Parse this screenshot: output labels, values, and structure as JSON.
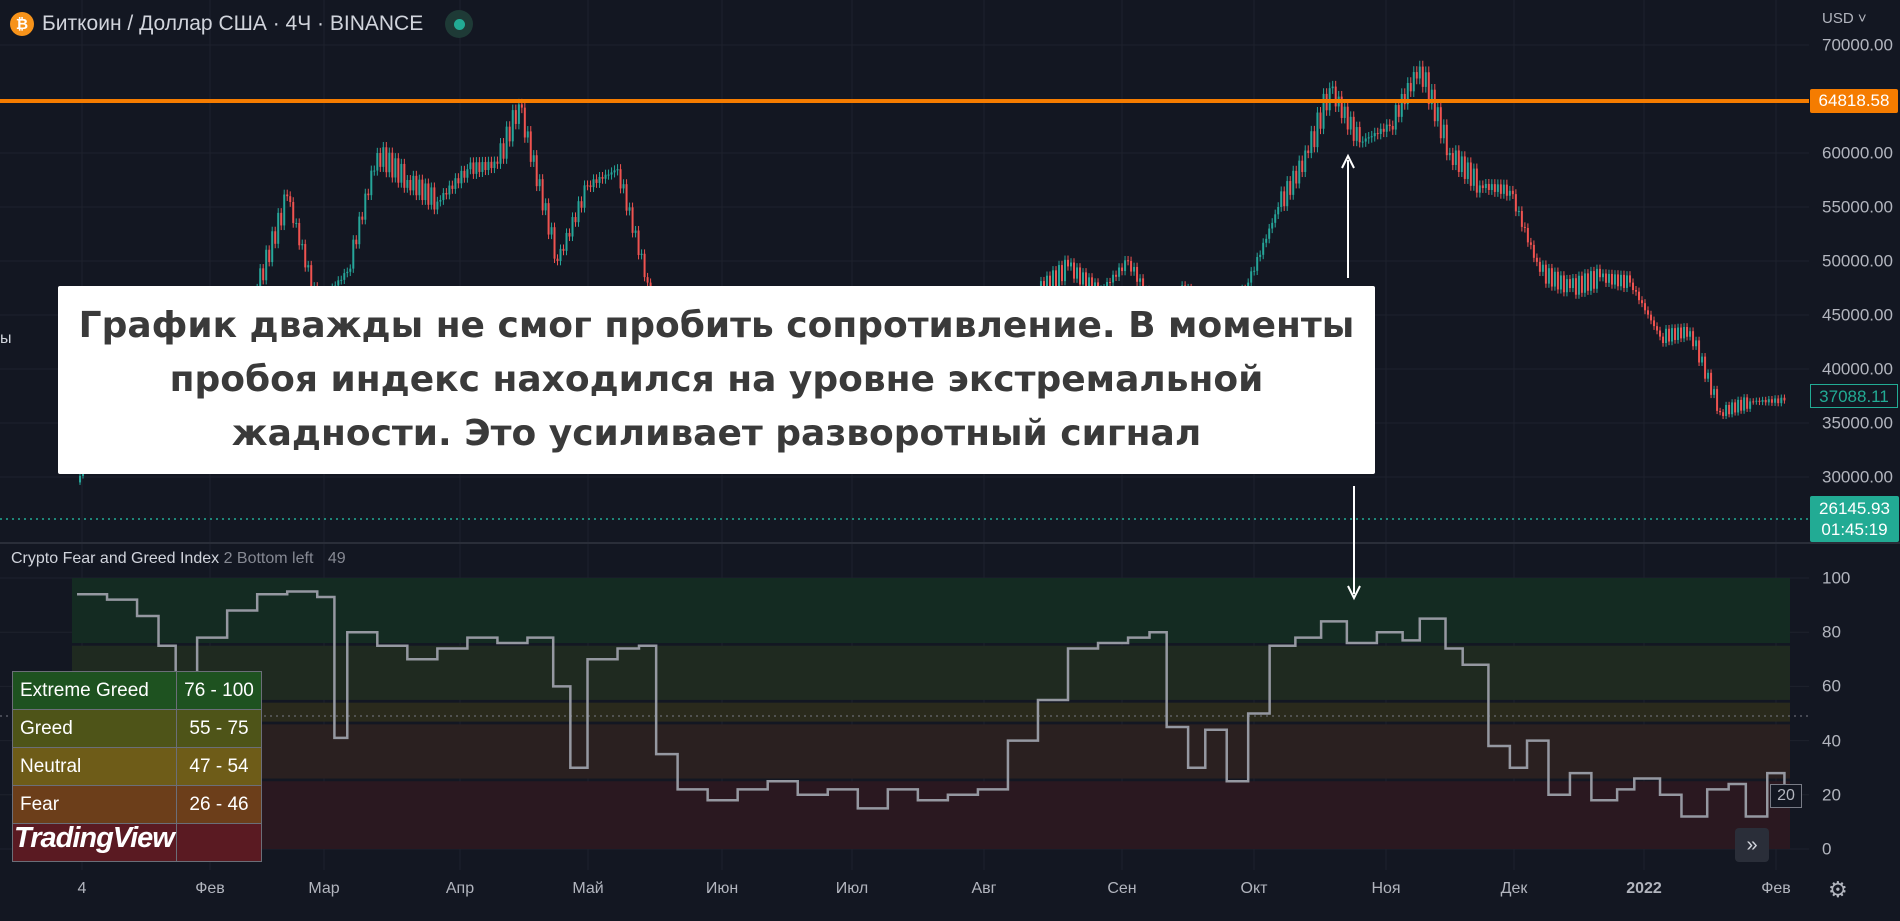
{
  "header": {
    "symbol_title": "Биткоин / Доллар США · 4Ч · BINANCE",
    "icon": "bitcoin-icon",
    "market_status": "open"
  },
  "price_axis": {
    "currency": "USD",
    "ticks": [
      "70000.00",
      "60000.00",
      "55000.00",
      "50000.00",
      "45000.00",
      "40000.00",
      "35000.00",
      "30000.00"
    ],
    "resistance_label": "64818.58",
    "last_label": "37088.11",
    "current_price": "26145.93",
    "countdown": "01:45:19"
  },
  "cutoff_text": "ы",
  "annotation": {
    "lines": [
      "График дважды не смог пробить сопротивление. В моменты",
      "пробоя индекс находился на уровне экстремальной",
      "жадности. Это усиливает разворотный сигнал"
    ]
  },
  "indicator": {
    "title": "Crypto Fear and Greed Index",
    "params": "2 Bottom left",
    "value_label": "49",
    "ticks": [
      "100",
      "80",
      "60",
      "40",
      "20",
      "0"
    ],
    "current": "20",
    "legend": [
      {
        "label": "Extreme Greed",
        "range": "76 - 100",
        "color": "#1e5220"
      },
      {
        "label": "Greed",
        "range": "55 - 75",
        "color": "#4e5418"
      },
      {
        "label": "Neutral",
        "range": "47 - 54",
        "color": "#6e5c18"
      },
      {
        "label": "Fear",
        "range": "26 - 46",
        "color": "#6c3e1a"
      },
      {
        "label": "",
        "range": "",
        "color": "#5a1a22"
      }
    ]
  },
  "time_axis": {
    "ticks": [
      "4",
      "Фев",
      "Мар",
      "Апр",
      "Май",
      "Июн",
      "Июл",
      "Авг",
      "Сен",
      "Окт",
      "Ноя",
      "Дек",
      "2022",
      "Фев"
    ]
  },
  "watermark": "TradingView",
  "colors": {
    "background": "#131722",
    "up": "#26a69a",
    "down": "#ef5350",
    "resistance": "#f57c00",
    "index_line": "#9598a1"
  },
  "chart_data": [
    {
      "type": "candlestick",
      "title": "Биткоин / Доллар США · 4Ч · BINANCE",
      "ylim": [
        25000,
        72000
      ],
      "resistance": 64818.58,
      "x": [
        "2021-01-01",
        "2021-01-08",
        "2021-01-15",
        "2021-01-22",
        "2021-01-29",
        "2021-02-05",
        "2021-02-12",
        "2021-02-19",
        "2021-02-26",
        "2021-03-05",
        "2021-03-12",
        "2021-03-19",
        "2021-03-26",
        "2021-04-02",
        "2021-04-09",
        "2021-04-14",
        "2021-04-23",
        "2021-04-30",
        "2021-05-07",
        "2021-05-14",
        "2021-05-21",
        "2021-05-28",
        "2021-06-04",
        "2021-06-11",
        "2021-06-18",
        "2021-06-25",
        "2021-07-02",
        "2021-07-09",
        "2021-07-16",
        "2021-07-23",
        "2021-07-30",
        "2021-08-06",
        "2021-08-13",
        "2021-08-20",
        "2021-08-27",
        "2021-09-03",
        "2021-09-10",
        "2021-09-17",
        "2021-09-24",
        "2021-10-01",
        "2021-10-08",
        "2021-10-15",
        "2021-10-20",
        "2021-10-27",
        "2021-11-03",
        "2021-11-10",
        "2021-11-17",
        "2021-11-24",
        "2021-12-01",
        "2021-12-08",
        "2021-12-15",
        "2021-12-22",
        "2021-12-29",
        "2022-01-05",
        "2022-01-12",
        "2022-01-19",
        "2022-01-26",
        "2022-02-03"
      ],
      "close": [
        29500,
        40000,
        36500,
        32000,
        34000,
        39000,
        47500,
        56000,
        46000,
        49000,
        60000,
        57500,
        55500,
        58500,
        59000,
        64500,
        50000,
        57000,
        58500,
        48000,
        37000,
        35500,
        36500,
        39000,
        35500,
        32000,
        33800,
        33800,
        31500,
        34500,
        40000,
        44000,
        47000,
        49500,
        47000,
        50000,
        45000,
        47500,
        42500,
        48000,
        55000,
        60000,
        66000,
        61000,
        62500,
        68000,
        60000,
        57000,
        56500,
        49000,
        47500,
        48500,
        48000,
        43000,
        43500,
        36000,
        37000,
        37088
      ]
    },
    {
      "type": "line",
      "title": "Crypto Fear and Greed Index",
      "ylim": [
        0,
        100
      ],
      "bands": [
        {
          "from": 76,
          "to": 100
        },
        {
          "from": 55,
          "to": 75
        },
        {
          "from": 47,
          "to": 54
        },
        {
          "from": 26,
          "to": 46
        },
        {
          "from": 0,
          "to": 25
        }
      ],
      "x": [
        "2021-01-01",
        "2021-01-08",
        "2021-01-15",
        "2021-01-20",
        "2021-01-24",
        "2021-01-29",
        "2021-02-05",
        "2021-02-12",
        "2021-02-19",
        "2021-02-26",
        "2021-03-02",
        "2021-03-05",
        "2021-03-12",
        "2021-03-19",
        "2021-03-26",
        "2021-04-02",
        "2021-04-09",
        "2021-04-16",
        "2021-04-22",
        "2021-04-26",
        "2021-04-30",
        "2021-05-07",
        "2021-05-12",
        "2021-05-16",
        "2021-05-21",
        "2021-05-28",
        "2021-06-04",
        "2021-06-11",
        "2021-06-18",
        "2021-06-25",
        "2021-07-02",
        "2021-07-09",
        "2021-07-16",
        "2021-07-23",
        "2021-07-30",
        "2021-08-06",
        "2021-08-13",
        "2021-08-20",
        "2021-08-27",
        "2021-09-03",
        "2021-09-08",
        "2021-09-12",
        "2021-09-17",
        "2021-09-21",
        "2021-09-26",
        "2021-10-01",
        "2021-10-06",
        "2021-10-12",
        "2021-10-18",
        "2021-10-24",
        "2021-10-31",
        "2021-11-06",
        "2021-11-10",
        "2021-11-16",
        "2021-11-20",
        "2021-11-26",
        "2021-12-01",
        "2021-12-05",
        "2021-12-10",
        "2021-12-15",
        "2021-12-20",
        "2021-12-26",
        "2021-12-30",
        "2022-01-05",
        "2022-01-10",
        "2022-01-16",
        "2022-01-21",
        "2022-01-25",
        "2022-01-30",
        "2022-02-03"
      ],
      "values": [
        94,
        92,
        86,
        75,
        40,
        78,
        88,
        94,
        95,
        93,
        41,
        80,
        75,
        70,
        74,
        78,
        76,
        78,
        60,
        30,
        70,
        74,
        75,
        35,
        22,
        18,
        22,
        25,
        20,
        22,
        15,
        22,
        18,
        20,
        22,
        40,
        55,
        74,
        76,
        78,
        80,
        45,
        30,
        44,
        25,
        50,
        75,
        78,
        84,
        76,
        80,
        77,
        85,
        74,
        68,
        38,
        30,
        40,
        20,
        28,
        18,
        22,
        26,
        20,
        12,
        22,
        24,
        12,
        28,
        20
      ]
    }
  ]
}
